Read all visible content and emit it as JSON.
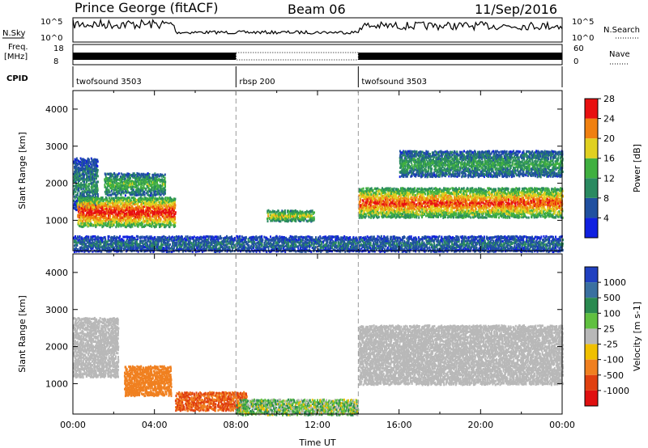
{
  "header": {
    "station": "Prince George (fitACF)",
    "beam": "Beam 06",
    "date": "11/Sep/2016"
  },
  "strips": {
    "nsky_label": "N.Sky",
    "nsearch_label": "N.Search",
    "noise_ticks": [
      "10^5",
      "10^0"
    ],
    "freq_label": "Freq.",
    "freq_unit": "[MHz]",
    "freq_ticks": [
      "18",
      "8"
    ],
    "nave_label": "Nave",
    "nave_ticks": [
      "60",
      "0"
    ],
    "cpid_label": "CPID",
    "cpid_segments": [
      {
        "label": "twofsound 3503",
        "start_hour": 0
      },
      {
        "label": "rbsp 200",
        "start_hour": 8
      },
      {
        "label": "twofsound 3503",
        "start_hour": 14
      }
    ]
  },
  "chart_data": [
    {
      "type": "heatmap",
      "quantity": "Power",
      "ylabel": "Slant Range [km]",
      "xlim_hours": [
        0,
        24
      ],
      "ylim_km": [
        180,
        4500
      ],
      "y_ticks": [
        1000,
        2000,
        3000,
        4000
      ],
      "colorbar": {
        "label": "Power [dB]",
        "ticks": [
          "4",
          "8",
          "12",
          "16",
          "20",
          "24",
          "28"
        ],
        "colors": [
          "#1020e0",
          "#2050a0",
          "#2a8a60",
          "#40b040",
          "#e0d020",
          "#f08010",
          "#e81010"
        ]
      },
      "echo_regions": [
        {
          "x": [
            0.0,
            1.2
          ],
          "y": [
            1300,
            2700
          ],
          "level": 10
        },
        {
          "x": [
            0.2,
            5.0
          ],
          "y": [
            850,
            1650
          ],
          "level": 26
        },
        {
          "x": [
            1.5,
            4.5
          ],
          "y": [
            1700,
            2300
          ],
          "level": 14
        },
        {
          "x": [
            9.5,
            11.8
          ],
          "y": [
            1000,
            1300
          ],
          "level": 18
        },
        {
          "x": [
            14.0,
            24.0
          ],
          "y": [
            1100,
            1900
          ],
          "level": 24
        },
        {
          "x": [
            16.0,
            24.0
          ],
          "y": [
            2200,
            2900
          ],
          "level": 12
        },
        {
          "x": [
            0.0,
            24.0
          ],
          "y": [
            180,
            600
          ],
          "level": 8
        }
      ]
    },
    {
      "type": "heatmap",
      "quantity": "Velocity",
      "ylabel": "Slant Range [km]",
      "xlabel": "Time UT",
      "xlim_hours": [
        0,
        24
      ],
      "ylim_km": [
        180,
        4500
      ],
      "x_ticks": [
        "00:00",
        "04:00",
        "08:00",
        "12:00",
        "16:00",
        "20:00",
        "00:00"
      ],
      "y_ticks": [
        1000,
        2000,
        3000,
        4000
      ],
      "colorbar": {
        "label": "Velocity [m s-1]",
        "ticks": [
          "1000",
          "500",
          "100",
          "25",
          "-25",
          "-100",
          "-500",
          "-1000"
        ],
        "colors": [
          "#2040c0",
          "#3a70a0",
          "#2a8a50",
          "#60c040",
          "#b8b8b8",
          "#f0c000",
          "#f08020",
          "#e04010",
          "#e01010"
        ]
      },
      "echo_regions": [
        {
          "x": [
            0.0,
            2.2
          ],
          "y": [
            1200,
            2800
          ],
          "velocity": 0
        },
        {
          "x": [
            2.5,
            4.8
          ],
          "y": [
            700,
            1500
          ],
          "velocity": -300
        },
        {
          "x": [
            5.0,
            8.5
          ],
          "y": [
            300,
            800
          ],
          "velocity": -500
        },
        {
          "x": [
            8.0,
            14.0
          ],
          "y": [
            180,
            600
          ],
          "velocity": 50
        },
        {
          "x": [
            14.0,
            24.0
          ],
          "y": [
            1000,
            2600
          ],
          "velocity": 0
        }
      ]
    }
  ]
}
